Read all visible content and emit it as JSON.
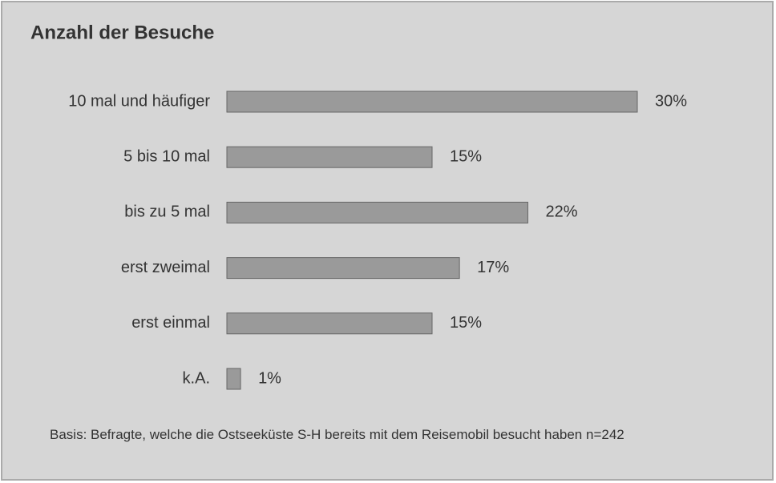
{
  "chart_data": {
    "type": "bar",
    "orientation": "horizontal",
    "title": "Anzahl der Besuche",
    "categories": [
      "10 mal und häufiger",
      "5 bis 10 mal",
      "bis zu 5 mal",
      "erst zweimal",
      "erst einmal",
      "k.A."
    ],
    "values": [
      30,
      15,
      22,
      17,
      15,
      1
    ],
    "value_labels": [
      "30%",
      "15%",
      "22%",
      "17%",
      "15%",
      "1%"
    ],
    "color": "#9a9a9a",
    "note": "Basis: Befragte, welche die Ostseeküste S-H bereits mit dem Reisemobil besucht haben n=242"
  }
}
